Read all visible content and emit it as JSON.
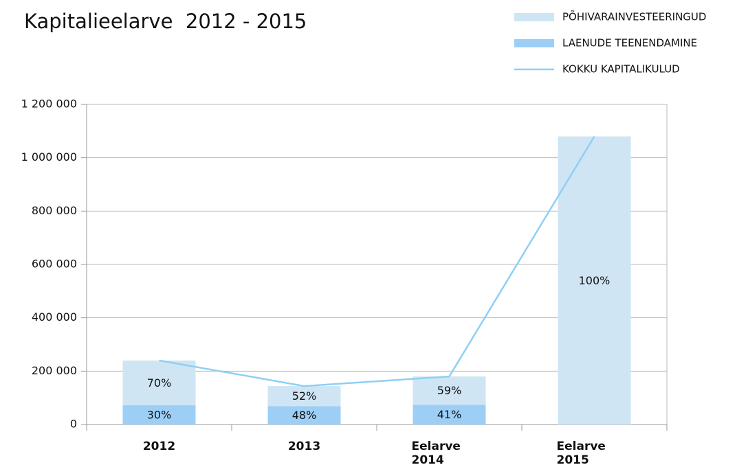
{
  "chart_data": {
    "type": "bar",
    "stacked": true,
    "title": "Kapitalieelarve  2012 - 2015",
    "categories": [
      "2012",
      "2013",
      "Eelarve 2014",
      "Eelarve 2015"
    ],
    "series": [
      {
        "name": "PÕHIVARAINVESTEERINGUD",
        "color": "#cfe5f4",
        "values": [
          168000,
          75000,
          106000,
          1080000
        ],
        "data_labels": [
          "70%",
          "52%",
          "59%",
          "100%"
        ]
      },
      {
        "name": "LAENUDE TEENENDAMINE",
        "color": "#9dcff6",
        "values": [
          72000,
          69000,
          74000,
          null
        ],
        "data_labels": [
          "30%",
          "48%",
          "41%",
          null
        ]
      },
      {
        "name": "KOKKU KAPITALIKULUD",
        "type": "line",
        "color": "#8ecff5",
        "values": [
          240000,
          144000,
          180000,
          1080000
        ]
      }
    ],
    "ylim": [
      0,
      1200000
    ],
    "yticks": [
      0,
      {
        "value": 200000,
        "label": "200 000"
      },
      {
        "value": 400000,
        "label": "400 000"
      },
      {
        "value": 600000,
        "label": "600 000"
      },
      {
        "value": 800000,
        "label": "800 000"
      },
      {
        "value": 1000000,
        "label": "1 000 000"
      },
      {
        "value": 1200000,
        "label": "1 200 000"
      }
    ],
    "grid": true
  }
}
